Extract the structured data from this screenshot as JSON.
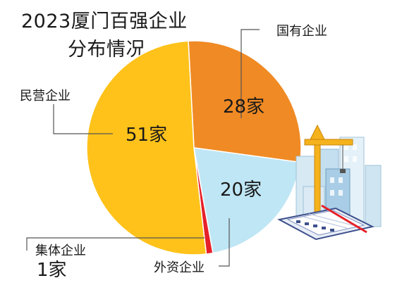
{
  "title_line1": "2023厦门百强企业",
  "title_line2": "分布情况",
  "colors": {
    "private": "#FFC21A",
    "state": "#F08A24",
    "foreign": "#BFE6F5",
    "collective": "#E62129",
    "leader": "#555555"
  },
  "chart_data": {
    "type": "pie",
    "title": "2023厦门百强企业分布情况",
    "slices": [
      {
        "name": "国有企业",
        "value": 28,
        "value_label": "28家",
        "color": "#F08A24"
      },
      {
        "name": "外资企业",
        "value": 20,
        "value_label": "20家",
        "color": "#BFE6F5"
      },
      {
        "name": "集体企业",
        "value": 1,
        "value_label": "1家",
        "color": "#E62129"
      },
      {
        "name": "民营企业",
        "value": 51,
        "value_label": "51家",
        "color": "#FFC21A"
      }
    ]
  }
}
